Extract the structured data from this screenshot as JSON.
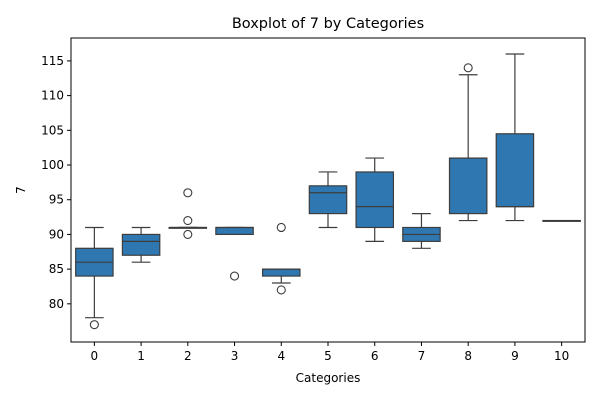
{
  "chart_data": {
    "type": "boxplot",
    "title": "Boxplot of 7 by Categories",
    "xlabel": "Categories",
    "ylabel": "7",
    "ylim": [
      74.5,
      118.3
    ],
    "yticks": [
      80,
      85,
      90,
      95,
      100,
      105,
      110,
      115
    ],
    "grid": false,
    "box_color": "#2f77b1",
    "line_color": "#3d3d3d",
    "categories": [
      "0",
      "1",
      "2",
      "3",
      "4",
      "5",
      "6",
      "7",
      "8",
      "9",
      "10"
    ],
    "boxes": [
      {
        "category": "0",
        "whisker_low": 78,
        "q1": 84,
        "median": 86,
        "q3": 88,
        "whisker_high": 91,
        "outliers": [
          77
        ]
      },
      {
        "category": "1",
        "whisker_low": 86,
        "q1": 87,
        "median": 89,
        "q3": 90,
        "whisker_high": 91,
        "outliers": []
      },
      {
        "category": "2",
        "whisker_low": 91,
        "q1": 91,
        "median": 91,
        "q3": 91,
        "whisker_high": 91,
        "outliers": [
          90,
          92,
          96
        ]
      },
      {
        "category": "3",
        "whisker_low": 90,
        "q1": 90,
        "median": 91,
        "q3": 91,
        "whisker_high": 91,
        "outliers": [
          84
        ]
      },
      {
        "category": "4",
        "whisker_low": 83,
        "q1": 84,
        "median": 85,
        "q3": 85,
        "whisker_high": 85,
        "outliers": [
          82,
          91
        ]
      },
      {
        "category": "5",
        "whisker_low": 91,
        "q1": 93,
        "median": 96,
        "q3": 97,
        "whisker_high": 99,
        "outliers": []
      },
      {
        "category": "6",
        "whisker_low": 89,
        "q1": 91,
        "median": 94,
        "q3": 99,
        "whisker_high": 101,
        "outliers": []
      },
      {
        "category": "7",
        "whisker_low": 88,
        "q1": 89,
        "median": 90,
        "q3": 91,
        "whisker_high": 93,
        "outliers": []
      },
      {
        "category": "8",
        "whisker_low": 92,
        "q1": 93,
        "median": 101,
        "q3": 101,
        "whisker_high": 113,
        "outliers": [
          114
        ]
      },
      {
        "category": "9",
        "whisker_low": 92,
        "q1": 94,
        "median": 94,
        "q3": 104.5,
        "whisker_high": 116,
        "outliers": []
      },
      {
        "category": "10",
        "whisker_low": 92,
        "q1": 92,
        "median": 92,
        "q3": 92,
        "whisker_high": 92,
        "outliers": []
      }
    ]
  }
}
